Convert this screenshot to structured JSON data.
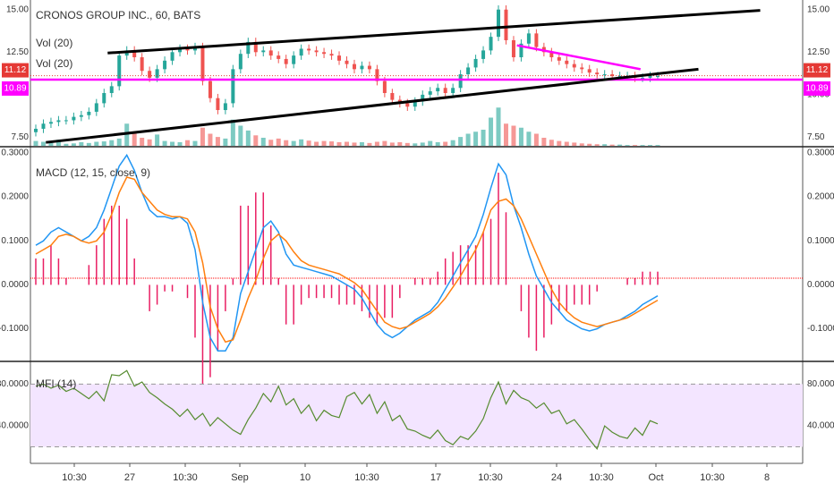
{
  "header": {
    "symbol_title": "CRONOS GROUP INC., 60, BATS",
    "vol_label_1": "Vol (20)",
    "vol_label_2": "Vol (20)"
  },
  "chart_data": [
    {
      "type": "candlestick",
      "panel": "price",
      "title": "CRONOS GROUP INC., 60, BATS",
      "ylim": [
        7.0,
        15.3
      ],
      "y_ticks": [
        "15.00",
        "12.50",
        "7.50"
      ],
      "y_ticks_right": [
        "15.00",
        "12.50",
        "10.00",
        "7.50"
      ],
      "price_badges": [
        {
          "value": "11.12",
          "color": "#e53935"
        },
        {
          "value": "10.89",
          "color": "#ff00ff"
        }
      ],
      "close": [
        8.0,
        8.3,
        8.4,
        8.5,
        8.5,
        8.7,
        8.8,
        9.0,
        9.5,
        10.1,
        10.5,
        12.3,
        12.6,
        12.2,
        11.4,
        11.0,
        11.5,
        12.0,
        12.5,
        12.7,
        12.6,
        12.8,
        10.8,
        9.8,
        9.1,
        9.5,
        11.5,
        12.4,
        13.1,
        12.5,
        12.6,
        12.3,
        12.1,
        11.8,
        12.3,
        12.7,
        12.6,
        12.5,
        12.4,
        12.3,
        12.0,
        11.8,
        11.5,
        11.7,
        11.5,
        10.8,
        10.1,
        9.7,
        9.5,
        9.3,
        9.6,
        10.0,
        10.2,
        10.4,
        10.1,
        10.4,
        11.2,
        11.6,
        12.1,
        12.6,
        13.4,
        15.0,
        13.2,
        12.2,
        13.0,
        13.6,
        12.8,
        12.5,
        12.2,
        12.0,
        11.8,
        11.6,
        11.5,
        11.3,
        11.2,
        11.2,
        11.1,
        11.1,
        11.1,
        11.0,
        11.0,
        11.1,
        11.1
      ],
      "trendlines": [
        {
          "from": [
            0.1,
            12.45
          ],
          "to": [
            0.945,
            14.95
          ],
          "color": "#000000"
        },
        {
          "from": [
            0.02,
            7.2
          ],
          "to": [
            0.865,
            11.5
          ],
          "color": "#000000"
        },
        {
          "from": [
            0.63,
            12.9
          ],
          "to": [
            0.79,
            11.5
          ],
          "color": "#ff00ff"
        }
      ],
      "horizontal_levels": [
        {
          "value": 10.89,
          "color": "#ff00ff"
        },
        {
          "value": 11.12,
          "color": "#e53935"
        }
      ],
      "volume_series": "Vol (20)",
      "volume": [
        0.12,
        0.1,
        0.08,
        0.15,
        0.05,
        0.06,
        0.09,
        0.07,
        0.1,
        0.11,
        0.14,
        0.18,
        0.55,
        0.35,
        0.2,
        0.16,
        0.28,
        0.12,
        0.1,
        0.09,
        0.14,
        0.12,
        0.45,
        0.3,
        0.22,
        0.18,
        0.65,
        0.5,
        0.38,
        0.26,
        0.2,
        0.15,
        0.18,
        0.14,
        0.12,
        0.16,
        0.13,
        0.1,
        0.12,
        0.11,
        0.09,
        0.1,
        0.08,
        0.09,
        0.07,
        0.1,
        0.12,
        0.08,
        0.09,
        0.07,
        0.06,
        0.08,
        0.12,
        0.09,
        0.1,
        0.14,
        0.22,
        0.3,
        0.35,
        0.4,
        0.7,
        0.95,
        0.55,
        0.5,
        0.45,
        0.35,
        0.3,
        0.2,
        0.15,
        0.12,
        0.1,
        0.08,
        0.06,
        0.05,
        0.04,
        0.04,
        0.03,
        0.03,
        0.02,
        0.02,
        0.02,
        0.02,
        0.02
      ]
    },
    {
      "type": "line",
      "panel": "macd",
      "title": "MACD (12, 15, close, 9)",
      "ylim": [
        -0.17,
        0.31
      ],
      "y_ticks": [
        "0.3000",
        "0.2000",
        "0.1000",
        "0.0000",
        "-0.1000"
      ],
      "zero_line_color": "#ff0000",
      "series": [
        {
          "name": "MACD",
          "color": "#2196f3",
          "values": [
            0.09,
            0.1,
            0.12,
            0.13,
            0.12,
            0.11,
            0.1,
            0.11,
            0.13,
            0.17,
            0.22,
            0.27,
            0.295,
            0.26,
            0.21,
            0.17,
            0.155,
            0.155,
            0.15,
            0.155,
            0.14,
            0.08,
            -0.04,
            -0.12,
            -0.15,
            -0.15,
            -0.12,
            -0.02,
            0.03,
            0.08,
            0.13,
            0.145,
            0.12,
            0.07,
            0.045,
            0.04,
            0.035,
            0.03,
            0.025,
            0.02,
            0.01,
            0.0,
            -0.01,
            -0.03,
            -0.06,
            -0.09,
            -0.11,
            -0.12,
            -0.11,
            -0.095,
            -0.08,
            -0.07,
            -0.06,
            -0.04,
            -0.01,
            0.02,
            0.05,
            0.08,
            0.11,
            0.16,
            0.22,
            0.275,
            0.25,
            0.18,
            0.13,
            0.07,
            0.02,
            -0.01,
            -0.04,
            -0.06,
            -0.08,
            -0.09,
            -0.1,
            -0.105,
            -0.1,
            -0.09,
            -0.085,
            -0.08,
            -0.07,
            -0.06,
            -0.045,
            -0.035,
            -0.025
          ]
        },
        {
          "name": "Signal",
          "color": "#ff7f0e",
          "values": [
            0.07,
            0.08,
            0.09,
            0.11,
            0.115,
            0.11,
            0.1,
            0.095,
            0.1,
            0.12,
            0.16,
            0.21,
            0.245,
            0.24,
            0.21,
            0.19,
            0.17,
            0.16,
            0.155,
            0.155,
            0.15,
            0.12,
            0.05,
            -0.05,
            -0.1,
            -0.13,
            -0.125,
            -0.08,
            -0.03,
            0.01,
            0.06,
            0.1,
            0.115,
            0.1,
            0.075,
            0.055,
            0.045,
            0.04,
            0.035,
            0.03,
            0.025,
            0.015,
            0.005,
            -0.01,
            -0.035,
            -0.06,
            -0.085,
            -0.095,
            -0.1,
            -0.095,
            -0.085,
            -0.075,
            -0.065,
            -0.05,
            -0.03,
            -0.005,
            0.02,
            0.05,
            0.08,
            0.12,
            0.17,
            0.19,
            0.195,
            0.18,
            0.15,
            0.11,
            0.07,
            0.03,
            -0.01,
            -0.04,
            -0.06,
            -0.075,
            -0.085,
            -0.09,
            -0.095,
            -0.09,
            -0.085,
            -0.08,
            -0.075,
            -0.065,
            -0.055,
            -0.045,
            -0.035
          ]
        }
      ],
      "histogram_color": "#e91e63"
    },
    {
      "type": "line",
      "panel": "mfi",
      "title": "MFI (14)",
      "ylim": [
        5,
        100
      ],
      "y_ticks": [
        "80.0000",
        "40.0000"
      ],
      "band": [
        20,
        80
      ],
      "band_color": "#f3e5ff",
      "series": [
        {
          "name": "MFI",
          "color": "#558b2f",
          "values": [
            78,
            80,
            76,
            79,
            73,
            76,
            71,
            66,
            73,
            64,
            89,
            88,
            93,
            78,
            82,
            72,
            67,
            61,
            56,
            49,
            56,
            46,
            52,
            40,
            48,
            42,
            36,
            32,
            46,
            57,
            71,
            63,
            78,
            60,
            66,
            52,
            60,
            45,
            55,
            50,
            48,
            68,
            72,
            61,
            70,
            52,
            63,
            45,
            50,
            37,
            35,
            31,
            28,
            36,
            26,
            22,
            30,
            27,
            35,
            47,
            67,
            82,
            61,
            74,
            67,
            64,
            57,
            62,
            52,
            55,
            42,
            46,
            37,
            27,
            18,
            40,
            34,
            30,
            28,
            38,
            31,
            45,
            42
          ]
        }
      ]
    }
  ],
  "x_axis": {
    "labels": [
      "10:30",
      "27",
      "10:30",
      "Sep",
      "10",
      "10:30",
      "17",
      "10:30",
      "24",
      "10:30",
      "Oct",
      "10:30",
      "8"
    ]
  }
}
